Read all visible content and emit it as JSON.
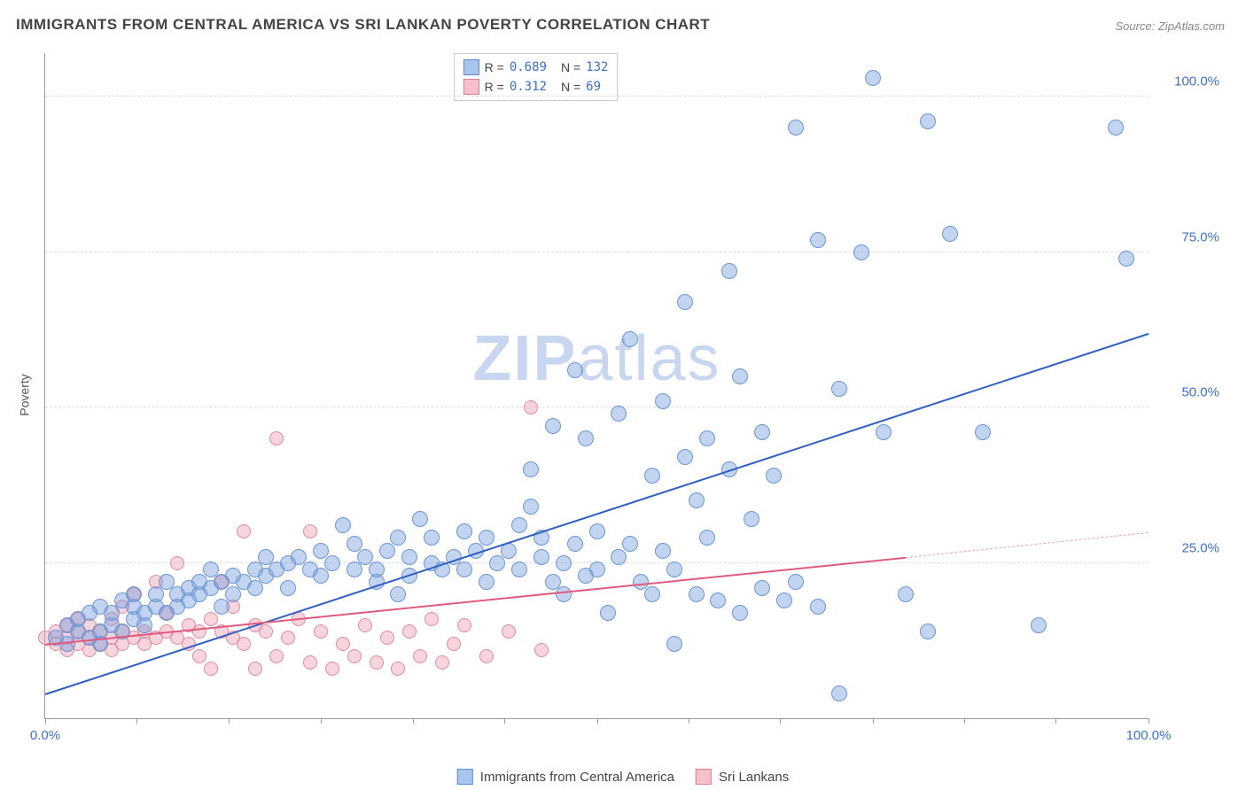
{
  "title": "IMMIGRANTS FROM CENTRAL AMERICA VS SRI LANKAN POVERTY CORRELATION CHART",
  "source": "Source: ZipAtlas.com",
  "ylabel": "Poverty",
  "watermark_zip": "ZIP",
  "watermark_atlas": "atlas",
  "chart": {
    "type": "scatter",
    "xlim": [
      0,
      100
    ],
    "ylim": [
      0,
      107
    ],
    "background_color": "#ffffff",
    "grid_color": "#dddddd",
    "axis_color": "#999999",
    "ytick_values": [
      25,
      50,
      75,
      100
    ],
    "ytick_labels": [
      "25.0%",
      "50.0%",
      "75.0%",
      "100.0%"
    ],
    "xtick_values": [
      0,
      8.3,
      16.6,
      25,
      33.3,
      41.6,
      50,
      58.3,
      66.6,
      75,
      83.3,
      91.6,
      100
    ],
    "xtick_labels_shown": {
      "0": "0.0%",
      "100": "100.0%"
    },
    "tick_label_color": "#3b6fd6",
    "label_fontsize": 14,
    "tick_fontsize": 15,
    "title_fontsize": 17,
    "title_color": "#444444",
    "marker_radius_blue": 9,
    "marker_radius_pink": 8
  },
  "legend_top": {
    "rows": [
      {
        "swatch": "blue",
        "r_label": "R =",
        "r_value": "0.689",
        "n_label": "N =",
        "n_value": "132"
      },
      {
        "swatch": "pink",
        "r_label": "R =",
        "r_value": "0.312",
        "n_label": "N =",
        "n_value": " 69"
      }
    ]
  },
  "legend_bottom": {
    "items": [
      {
        "swatch": "blue",
        "label": "Immigrants from Central America"
      },
      {
        "swatch": "pink",
        "label": "Sri Lankans"
      }
    ]
  },
  "series": {
    "blue": {
      "color_fill": "rgba(120,160,220,0.45)",
      "color_stroke": "#6a96d6",
      "regression": {
        "x1": 0,
        "y1": 4,
        "x2": 100,
        "y2": 62,
        "color": "#2e5fc4",
        "width": 2
      },
      "points": [
        [
          1,
          13
        ],
        [
          2,
          15
        ],
        [
          2,
          12
        ],
        [
          3,
          14
        ],
        [
          3,
          16
        ],
        [
          4,
          13
        ],
        [
          4,
          17
        ],
        [
          5,
          14
        ],
        [
          5,
          18
        ],
        [
          5,
          12
        ],
        [
          6,
          15
        ],
        [
          6,
          17
        ],
        [
          7,
          14
        ],
        [
          7,
          19
        ],
        [
          8,
          16
        ],
        [
          8,
          18
        ],
        [
          8,
          20
        ],
        [
          9,
          17
        ],
        [
          9,
          15
        ],
        [
          10,
          18
        ],
        [
          10,
          20
        ],
        [
          11,
          17
        ],
        [
          11,
          22
        ],
        [
          12,
          18
        ],
        [
          12,
          20
        ],
        [
          13,
          21
        ],
        [
          13,
          19
        ],
        [
          14,
          20
        ],
        [
          14,
          22
        ],
        [
          15,
          21
        ],
        [
          15,
          24
        ],
        [
          16,
          22
        ],
        [
          16,
          18
        ],
        [
          17,
          23
        ],
        [
          17,
          20
        ],
        [
          18,
          22
        ],
        [
          19,
          24
        ],
        [
          19,
          21
        ],
        [
          20,
          23
        ],
        [
          20,
          26
        ],
        [
          21,
          24
        ],
        [
          22,
          25
        ],
        [
          22,
          21
        ],
        [
          23,
          26
        ],
        [
          24,
          24
        ],
        [
          25,
          27
        ],
        [
          25,
          23
        ],
        [
          26,
          25
        ],
        [
          27,
          31
        ],
        [
          28,
          24
        ],
        [
          28,
          28
        ],
        [
          29,
          26
        ],
        [
          30,
          24
        ],
        [
          30,
          22
        ],
        [
          31,
          27
        ],
        [
          32,
          29
        ],
        [
          32,
          20
        ],
        [
          33,
          26
        ],
        [
          33,
          23
        ],
        [
          34,
          32
        ],
        [
          35,
          25
        ],
        [
          35,
          29
        ],
        [
          36,
          24
        ],
        [
          37,
          26
        ],
        [
          38,
          30
        ],
        [
          38,
          24
        ],
        [
          39,
          27
        ],
        [
          40,
          22
        ],
        [
          40,
          29
        ],
        [
          41,
          25
        ],
        [
          42,
          27
        ],
        [
          43,
          31
        ],
        [
          43,
          24
        ],
        [
          44,
          34
        ],
        [
          44,
          40
        ],
        [
          45,
          26
        ],
        [
          45,
          29
        ],
        [
          46,
          22
        ],
        [
          46,
          47
        ],
        [
          47,
          25
        ],
        [
          47,
          20
        ],
        [
          48,
          28
        ],
        [
          48,
          56
        ],
        [
          49,
          23
        ],
        [
          49,
          45
        ],
        [
          50,
          30
        ],
        [
          50,
          24
        ],
        [
          51,
          17
        ],
        [
          52,
          26
        ],
        [
          52,
          49
        ],
        [
          53,
          28
        ],
        [
          53,
          61
        ],
        [
          54,
          22
        ],
        [
          55,
          39
        ],
        [
          55,
          20
        ],
        [
          56,
          27
        ],
        [
          56,
          51
        ],
        [
          57,
          24
        ],
        [
          57,
          12
        ],
        [
          58,
          42
        ],
        [
          58,
          67
        ],
        [
          59,
          20
        ],
        [
          59,
          35
        ],
        [
          60,
          45
        ],
        [
          60,
          29
        ],
        [
          61,
          19
        ],
        [
          62,
          40
        ],
        [
          62,
          72
        ],
        [
          63,
          55
        ],
        [
          63,
          17
        ],
        [
          64,
          32
        ],
        [
          65,
          46
        ],
        [
          65,
          21
        ],
        [
          66,
          39
        ],
        [
          67,
          19
        ],
        [
          68,
          95
        ],
        [
          68,
          22
        ],
        [
          70,
          77
        ],
        [
          70,
          18
        ],
        [
          72,
          53
        ],
        [
          72,
          4
        ],
        [
          74,
          75
        ],
        [
          75,
          103
        ],
        [
          76,
          46
        ],
        [
          78,
          20
        ],
        [
          80,
          96
        ],
        [
          80,
          14
        ],
        [
          82,
          78
        ],
        [
          85,
          46
        ],
        [
          90,
          15
        ],
        [
          97,
          95
        ],
        [
          98,
          74
        ]
      ]
    },
    "pink": {
      "color_fill": "rgba(240,160,180,0.45)",
      "color_stroke": "#e08aa0",
      "regression_solid": {
        "x1": 0,
        "y1": 12,
        "x2": 78,
        "y2": 26,
        "color": "#e05a80",
        "width": 2
      },
      "regression_dashed": {
        "x1": 78,
        "y1": 26,
        "x2": 100,
        "y2": 30,
        "color": "#e8a0b2"
      },
      "points": [
        [
          0,
          13
        ],
        [
          1,
          12
        ],
        [
          1,
          14
        ],
        [
          2,
          13
        ],
        [
          2,
          15
        ],
        [
          2,
          11
        ],
        [
          3,
          12
        ],
        [
          3,
          14
        ],
        [
          3,
          16
        ],
        [
          4,
          13
        ],
        [
          4,
          15
        ],
        [
          4,
          11
        ],
        [
          5,
          12
        ],
        [
          5,
          14
        ],
        [
          6,
          13
        ],
        [
          6,
          16
        ],
        [
          6,
          11
        ],
        [
          7,
          14
        ],
        [
          7,
          18
        ],
        [
          7,
          12
        ],
        [
          8,
          13
        ],
        [
          8,
          20
        ],
        [
          9,
          14
        ],
        [
          9,
          12
        ],
        [
          10,
          13
        ],
        [
          10,
          22
        ],
        [
          11,
          14
        ],
        [
          11,
          17
        ],
        [
          12,
          13
        ],
        [
          12,
          25
        ],
        [
          13,
          15
        ],
        [
          13,
          12
        ],
        [
          14,
          14
        ],
        [
          14,
          10
        ],
        [
          15,
          16
        ],
        [
          15,
          8
        ],
        [
          16,
          14
        ],
        [
          16,
          22
        ],
        [
          17,
          13
        ],
        [
          17,
          18
        ],
        [
          18,
          12
        ],
        [
          18,
          30
        ],
        [
          19,
          15
        ],
        [
          19,
          8
        ],
        [
          20,
          14
        ],
        [
          21,
          10
        ],
        [
          21,
          45
        ],
        [
          22,
          13
        ],
        [
          23,
          16
        ],
        [
          24,
          9
        ],
        [
          24,
          30
        ],
        [
          25,
          14
        ],
        [
          26,
          8
        ],
        [
          27,
          12
        ],
        [
          28,
          10
        ],
        [
          29,
          15
        ],
        [
          30,
          9
        ],
        [
          31,
          13
        ],
        [
          32,
          8
        ],
        [
          33,
          14
        ],
        [
          34,
          10
        ],
        [
          35,
          16
        ],
        [
          36,
          9
        ],
        [
          37,
          12
        ],
        [
          38,
          15
        ],
        [
          40,
          10
        ],
        [
          42,
          14
        ],
        [
          44,
          50
        ],
        [
          45,
          11
        ]
      ]
    }
  }
}
